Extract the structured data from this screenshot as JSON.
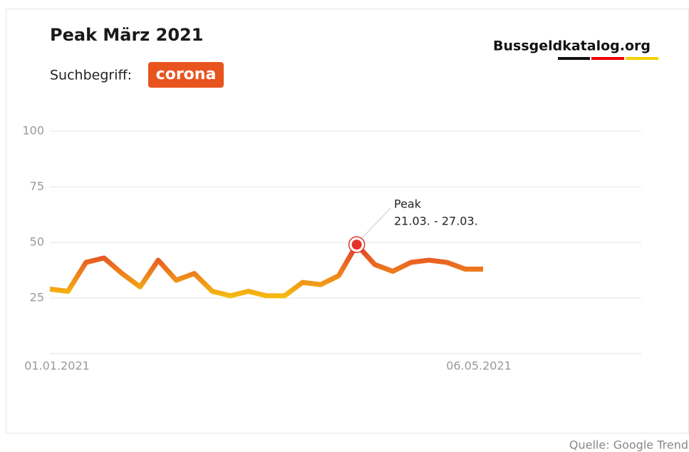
{
  "chart_data": {
    "type": "line",
    "title": "Peak März 2021",
    "subtitle": "Suchbegriff:",
    "search_term": "corona",
    "brand": "Bussgeldkatalog.org",
    "source": "Quelle: Google Trend",
    "annotation": {
      "label": "Peak",
      "text": "21.03. - 27.03."
    },
    "categories": [
      "01.01.2021",
      null,
      null,
      null,
      null,
      null,
      null,
      null,
      null,
      null,
      null,
      null,
      null,
      null,
      null,
      null,
      null,
      null,
      null,
      null,
      null,
      null,
      null,
      null,
      "06.05.2021"
    ],
    "series": [
      {
        "name": "corona",
        "values": [
          29,
          28,
          41,
          43,
          36,
          30,
          42,
          33,
          36,
          28,
          26,
          28,
          26,
          26,
          32,
          31,
          35,
          49,
          40,
          37,
          41,
          42,
          41,
          38,
          38
        ]
      }
    ],
    "gradient": [
      "#f6c10f",
      "#e3342c"
    ],
    "badge_color": "#e8541e",
    "ylim": [
      0,
      100
    ],
    "yticks": [
      25,
      50,
      75,
      100
    ],
    "grid": true
  }
}
